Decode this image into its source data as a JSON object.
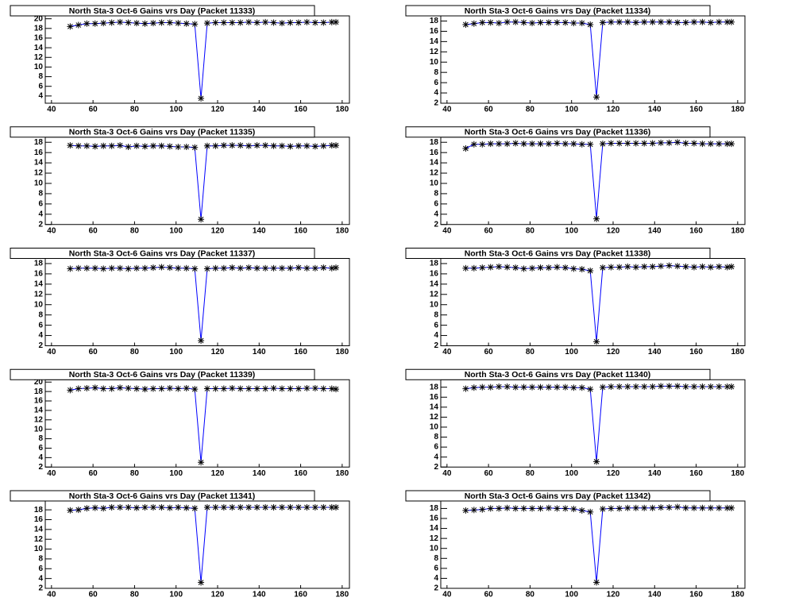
{
  "chart_data": [
    {
      "type": "line",
      "title": "North Sta-3 Oct-6 Gains vrs Day (Packet 11333)",
      "line_color": "#0000ff",
      "marker_color": "#000000",
      "x": [
        49,
        53,
        57,
        61,
        65,
        69,
        73,
        77,
        81,
        85,
        89,
        93,
        97,
        101,
        105,
        109,
        112,
        115,
        119,
        123,
        127,
        131,
        135,
        139,
        143,
        147,
        151,
        155,
        159,
        163,
        167,
        171,
        175,
        177
      ],
      "values": [
        18.4,
        18.7,
        19.0,
        19.0,
        19.1,
        19.2,
        19.3,
        19.2,
        19.1,
        19.0,
        19.1,
        19.2,
        19.2,
        19.1,
        19.0,
        18.9,
        3.5,
        19.1,
        19.2,
        19.2,
        19.2,
        19.2,
        19.3,
        19.2,
        19.3,
        19.2,
        19.1,
        19.2,
        19.2,
        19.3,
        19.2,
        19.2,
        19.3,
        19.3
      ],
      "xlim": [
        37,
        183.5
      ],
      "xticks": [
        40,
        60,
        80,
        100,
        120,
        140,
        160,
        180
      ],
      "ylim": [
        2.5,
        20.6
      ],
      "yticks": [
        4,
        6,
        8,
        10,
        12,
        14,
        16,
        18,
        20
      ]
    },
    {
      "type": "line",
      "title": "North Sta-3 Oct-6 Gains vrs Day (Packet 11334)",
      "line_color": "#0000ff",
      "marker_color": "#000000",
      "x": [
        49,
        53,
        57,
        61,
        65,
        69,
        73,
        77,
        81,
        85,
        89,
        93,
        97,
        101,
        105,
        109,
        112,
        115,
        119,
        123,
        127,
        131,
        135,
        139,
        143,
        147,
        151,
        155,
        159,
        163,
        167,
        171,
        175,
        177
      ],
      "values": [
        17.3,
        17.5,
        17.7,
        17.7,
        17.6,
        17.8,
        17.8,
        17.7,
        17.6,
        17.7,
        17.7,
        17.7,
        17.7,
        17.6,
        17.6,
        17.3,
        3.2,
        17.7,
        17.8,
        17.8,
        17.8,
        17.7,
        17.8,
        17.8,
        17.8,
        17.8,
        17.7,
        17.7,
        17.8,
        17.8,
        17.7,
        17.8,
        17.8,
        17.8
      ],
      "xlim": [
        37,
        183.5
      ],
      "xticks": [
        40,
        60,
        80,
        100,
        120,
        140,
        160,
        180
      ],
      "ylim": [
        2,
        19
      ],
      "yticks": [
        2,
        4,
        6,
        8,
        10,
        12,
        14,
        16,
        18
      ]
    },
    {
      "type": "line",
      "title": "North Sta-3 Oct-6 Gains vrs Day (Packet 11335)",
      "line_color": "#0000ff",
      "marker_color": "#000000",
      "x": [
        49,
        53,
        57,
        61,
        65,
        69,
        73,
        77,
        81,
        85,
        89,
        93,
        97,
        101,
        105,
        109,
        112,
        115,
        119,
        123,
        127,
        131,
        135,
        139,
        143,
        147,
        151,
        155,
        159,
        163,
        167,
        171,
        175,
        177
      ],
      "values": [
        17.4,
        17.3,
        17.3,
        17.2,
        17.3,
        17.3,
        17.4,
        17.1,
        17.3,
        17.2,
        17.3,
        17.3,
        17.2,
        17.1,
        17.1,
        17.0,
        3.0,
        17.3,
        17.3,
        17.4,
        17.4,
        17.4,
        17.3,
        17.4,
        17.4,
        17.3,
        17.3,
        17.2,
        17.3,
        17.3,
        17.2,
        17.3,
        17.4,
        17.4
      ],
      "xlim": [
        37,
        183.5
      ],
      "xticks": [
        40,
        60,
        80,
        100,
        120,
        140,
        160,
        180
      ],
      "ylim": [
        2,
        19
      ],
      "yticks": [
        2,
        4,
        6,
        8,
        10,
        12,
        14,
        16,
        18
      ]
    },
    {
      "type": "line",
      "title": "North Sta-3 Oct-6 Gains vrs Day (Packet 11336)",
      "line_color": "#0000ff",
      "marker_color": "#000000",
      "x": [
        49,
        53,
        57,
        61,
        65,
        69,
        73,
        77,
        81,
        85,
        89,
        93,
        97,
        101,
        105,
        109,
        112,
        115,
        119,
        123,
        127,
        131,
        135,
        139,
        143,
        147,
        151,
        155,
        159,
        163,
        167,
        171,
        175,
        177
      ],
      "values": [
        16.8,
        17.6,
        17.6,
        17.7,
        17.7,
        17.7,
        17.8,
        17.7,
        17.7,
        17.7,
        17.7,
        17.8,
        17.7,
        17.7,
        17.6,
        17.6,
        3.1,
        17.7,
        17.8,
        17.8,
        17.8,
        17.8,
        17.8,
        17.8,
        17.9,
        17.9,
        18.0,
        17.8,
        17.8,
        17.7,
        17.7,
        17.7,
        17.7,
        17.7
      ],
      "xlim": [
        37,
        183.5
      ],
      "xticks": [
        40,
        60,
        80,
        100,
        120,
        140,
        160,
        180
      ],
      "ylim": [
        2,
        19
      ],
      "yticks": [
        2,
        4,
        6,
        8,
        10,
        12,
        14,
        16,
        18
      ]
    },
    {
      "type": "line",
      "title": "North Sta-3 Oct-6 Gains vrs Day (Packet 11337)",
      "line_color": "#0000ff",
      "marker_color": "#000000",
      "x": [
        49,
        53,
        57,
        61,
        65,
        69,
        73,
        77,
        81,
        85,
        89,
        93,
        97,
        101,
        105,
        109,
        112,
        115,
        119,
        123,
        127,
        131,
        135,
        139,
        143,
        147,
        151,
        155,
        159,
        163,
        167,
        171,
        175,
        177
      ],
      "values": [
        17.0,
        17.1,
        17.1,
        17.1,
        17.0,
        17.1,
        17.1,
        17.0,
        17.1,
        17.1,
        17.2,
        17.3,
        17.2,
        17.1,
        17.1,
        17.0,
        3.0,
        17.0,
        17.1,
        17.1,
        17.2,
        17.1,
        17.2,
        17.1,
        17.1,
        17.1,
        17.1,
        17.1,
        17.2,
        17.1,
        17.1,
        17.2,
        17.1,
        17.2
      ],
      "xlim": [
        37,
        183.5
      ],
      "xticks": [
        40,
        60,
        80,
        100,
        120,
        140,
        160,
        180
      ],
      "ylim": [
        2,
        19
      ],
      "yticks": [
        2,
        4,
        6,
        8,
        10,
        12,
        14,
        16,
        18
      ]
    },
    {
      "type": "line",
      "title": "North Sta-3 Oct-6 Gains vrs Day (Packet 11338)",
      "line_color": "#0000ff",
      "marker_color": "#000000",
      "x": [
        49,
        53,
        57,
        61,
        65,
        69,
        73,
        77,
        81,
        85,
        89,
        93,
        97,
        101,
        105,
        109,
        112,
        115,
        119,
        123,
        127,
        131,
        135,
        139,
        143,
        147,
        151,
        155,
        159,
        163,
        167,
        171,
        175,
        177
      ],
      "values": [
        17.1,
        17.1,
        17.2,
        17.3,
        17.4,
        17.3,
        17.2,
        17.0,
        17.1,
        17.2,
        17.2,
        17.3,
        17.2,
        17.0,
        16.9,
        16.6,
        2.8,
        17.2,
        17.3,
        17.3,
        17.4,
        17.3,
        17.4,
        17.4,
        17.5,
        17.6,
        17.5,
        17.4,
        17.3,
        17.4,
        17.3,
        17.4,
        17.3,
        17.4
      ],
      "xlim": [
        37,
        183.5
      ],
      "xticks": [
        40,
        60,
        80,
        100,
        120,
        140,
        160,
        180
      ],
      "ylim": [
        2,
        19
      ],
      "yticks": [
        2,
        4,
        6,
        8,
        10,
        12,
        14,
        16,
        18
      ]
    },
    {
      "type": "line",
      "title": "North Sta-3 Oct-6 Gains vrs Day (Packet 11339)",
      "line_color": "#0000ff",
      "marker_color": "#000000",
      "x": [
        49,
        53,
        57,
        61,
        65,
        69,
        73,
        77,
        81,
        85,
        89,
        93,
        97,
        101,
        105,
        109,
        112,
        115,
        119,
        123,
        127,
        131,
        135,
        139,
        143,
        147,
        151,
        155,
        159,
        163,
        167,
        171,
        175,
        177
      ],
      "values": [
        18.3,
        18.6,
        18.7,
        18.8,
        18.6,
        18.6,
        18.8,
        18.7,
        18.6,
        18.5,
        18.6,
        18.6,
        18.7,
        18.6,
        18.7,
        18.5,
        3.0,
        18.6,
        18.6,
        18.6,
        18.7,
        18.6,
        18.6,
        18.6,
        18.6,
        18.7,
        18.6,
        18.6,
        18.6,
        18.7,
        18.7,
        18.6,
        18.6,
        18.5
      ],
      "xlim": [
        37,
        183.5
      ],
      "xticks": [
        40,
        60,
        80,
        100,
        120,
        140,
        160,
        180
      ],
      "ylim": [
        2,
        20.5
      ],
      "yticks": [
        2,
        4,
        6,
        8,
        10,
        12,
        14,
        16,
        18,
        20
      ]
    },
    {
      "type": "line",
      "title": "North Sta-3 Oct-6 Gains vrs Day (Packet 11340)",
      "line_color": "#0000ff",
      "marker_color": "#000000",
      "x": [
        49,
        53,
        57,
        61,
        65,
        69,
        73,
        77,
        81,
        85,
        89,
        93,
        97,
        101,
        105,
        109,
        112,
        115,
        119,
        123,
        127,
        131,
        135,
        139,
        143,
        147,
        151,
        155,
        159,
        163,
        167,
        171,
        175,
        177
      ],
      "values": [
        17.7,
        17.9,
        18.0,
        18.0,
        18.1,
        18.1,
        18.0,
        18.0,
        18.0,
        18.0,
        18.0,
        18.0,
        18.0,
        17.9,
        17.9,
        17.6,
        3.1,
        18.0,
        18.1,
        18.1,
        18.1,
        18.1,
        18.1,
        18.1,
        18.2,
        18.2,
        18.2,
        18.1,
        18.1,
        18.1,
        18.1,
        18.1,
        18.1,
        18.1
      ],
      "xlim": [
        37,
        183.5
      ],
      "xticks": [
        40,
        60,
        80,
        100,
        120,
        140,
        160,
        180
      ],
      "ylim": [
        2,
        19.5
      ],
      "yticks": [
        2,
        4,
        6,
        8,
        10,
        12,
        14,
        16,
        18
      ]
    },
    {
      "type": "line",
      "title": "North Sta-3 Oct-6 Gains vrs Day (Packet 11341)",
      "line_color": "#0000ff",
      "marker_color": "#000000",
      "x": [
        49,
        53,
        57,
        61,
        65,
        69,
        73,
        77,
        81,
        85,
        89,
        93,
        97,
        101,
        105,
        109,
        112,
        115,
        119,
        123,
        127,
        131,
        135,
        139,
        143,
        147,
        151,
        155,
        159,
        163,
        167,
        171,
        175,
        177
      ],
      "values": [
        17.9,
        18.0,
        18.3,
        18.4,
        18.3,
        18.5,
        18.5,
        18.5,
        18.4,
        18.5,
        18.5,
        18.5,
        18.4,
        18.5,
        18.4,
        18.3,
        3.2,
        18.5,
        18.5,
        18.5,
        18.5,
        18.5,
        18.5,
        18.5,
        18.5,
        18.5,
        18.5,
        18.5,
        18.5,
        18.5,
        18.5,
        18.5,
        18.5,
        18.5
      ],
      "xlim": [
        37,
        183.5
      ],
      "xticks": [
        40,
        60,
        80,
        100,
        120,
        140,
        160,
        180
      ],
      "ylim": [
        2,
        19.8
      ],
      "yticks": [
        2,
        4,
        6,
        8,
        10,
        12,
        14,
        16,
        18
      ]
    },
    {
      "type": "line",
      "title": "North Sta-3 Oct-6 Gains vrs Day (Packet 11342)",
      "line_color": "#0000ff",
      "marker_color": "#000000",
      "x": [
        49,
        53,
        57,
        61,
        65,
        69,
        73,
        77,
        81,
        85,
        89,
        93,
        97,
        101,
        105,
        109,
        112,
        115,
        119,
        123,
        127,
        131,
        135,
        139,
        143,
        147,
        151,
        155,
        159,
        163,
        167,
        171,
        175,
        177
      ],
      "values": [
        17.6,
        17.7,
        17.8,
        18.0,
        18.0,
        18.1,
        18.0,
        18.0,
        18.0,
        18.0,
        18.1,
        18.0,
        18.0,
        17.9,
        17.6,
        17.3,
        3.2,
        17.9,
        18.0,
        18.0,
        18.1,
        18.1,
        18.1,
        18.1,
        18.2,
        18.2,
        18.3,
        18.1,
        18.1,
        18.1,
        18.1,
        18.1,
        18.1,
        18.1
      ],
      "xlim": [
        37,
        183.5
      ],
      "xticks": [
        40,
        60,
        80,
        100,
        120,
        140,
        160,
        180
      ],
      "ylim": [
        2,
        19.5
      ],
      "yticks": [
        2,
        4,
        6,
        8,
        10,
        12,
        14,
        16,
        18
      ]
    }
  ]
}
